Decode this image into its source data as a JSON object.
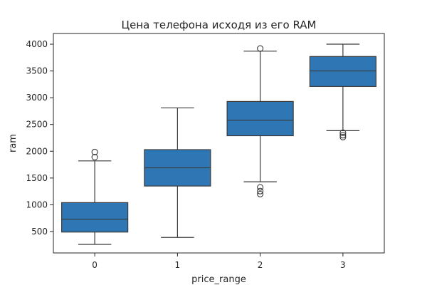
{
  "chart_data": {
    "type": "box",
    "title": "Цена телефона исходя из его RAM",
    "xlabel": "price_range",
    "ylabel": "ram",
    "categories": [
      "0",
      "1",
      "2",
      "3"
    ],
    "ylim": [
      100,
      4200
    ],
    "yticks": [
      500,
      1000,
      1500,
      2000,
      2500,
      3000,
      3500,
      4000
    ],
    "grid": false,
    "legend": "none",
    "box_color": "#2f77b4",
    "line_color": "#3a3a3a",
    "boxes": [
      {
        "category": "0",
        "whisker_low": 260,
        "q1": 490,
        "median": 730,
        "q3": 1040,
        "whisker_high": 1820,
        "outliers": [
          1890,
          1985
        ]
      },
      {
        "category": "1",
        "whisker_low": 390,
        "q1": 1350,
        "median": 1690,
        "q3": 2030,
        "whisker_high": 2810,
        "outliers": []
      },
      {
        "category": "2",
        "whisker_low": 1430,
        "q1": 2290,
        "median": 2580,
        "q3": 2930,
        "whisker_high": 3870,
        "outliers": [
          1200,
          1255,
          1325,
          3920
        ]
      },
      {
        "category": "3",
        "whisker_low": 2385,
        "q1": 3210,
        "median": 3500,
        "q3": 3770,
        "whisker_high": 4000,
        "outliers": [
          2265,
          2300,
          2345
        ]
      }
    ]
  }
}
